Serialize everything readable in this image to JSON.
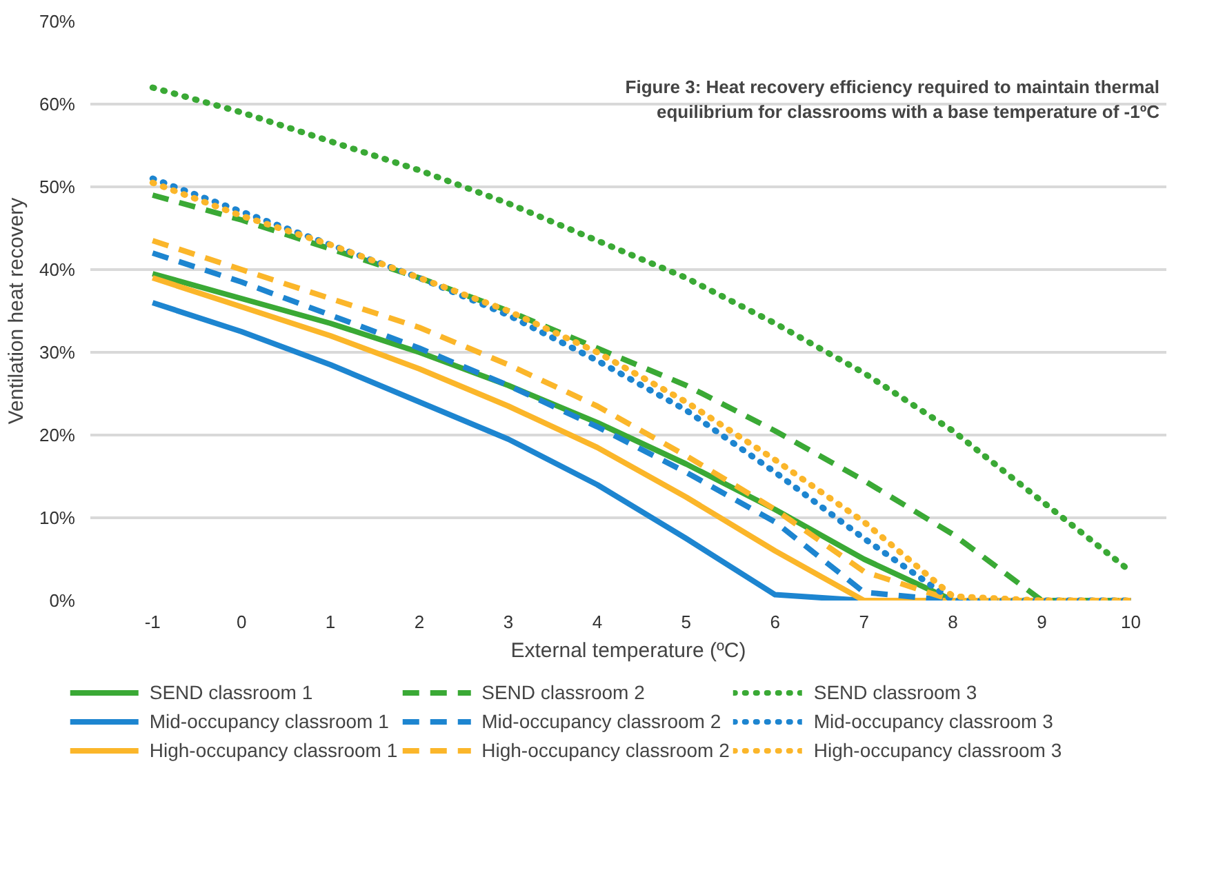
{
  "chart_data": {
    "type": "line",
    "title": "Figure 3: Heat recovery efficiency required to maintain thermal equilibrium for classrooms with a base temperature of -1ºC",
    "xlabel": "External temperature (ºC)",
    "ylabel": "Ventilation heat recovery",
    "x": [
      -1,
      0,
      1,
      2,
      3,
      4,
      5,
      6,
      7,
      8,
      9,
      10
    ],
    "xlim": [
      -1.7,
      10.4
    ],
    "xticks": [
      -1,
      0,
      1,
      2,
      3,
      4,
      5,
      6,
      7,
      8,
      9,
      10
    ],
    "ylim": [
      0,
      70
    ],
    "yticks": [
      {
        "value": 0,
        "label": "0%"
      },
      {
        "value": 10,
        "label": "10%"
      },
      {
        "value": 20,
        "label": "20%"
      },
      {
        "value": 30,
        "label": "30%"
      },
      {
        "value": 40,
        "label": "40%"
      },
      {
        "value": 50,
        "label": "50%"
      },
      {
        "value": 60,
        "label": "60%"
      },
      {
        "value": 70,
        "label": "70%"
      }
    ],
    "grid": "y",
    "legend": "bottom",
    "marker": "none",
    "series": [
      {
        "name": "SEND classroom 1",
        "color": "#3aa935",
        "line_style": "solid",
        "values": [
          39.5,
          36.5,
          33.5,
          30,
          26,
          21.5,
          16.5,
          11,
          5,
          0,
          0,
          0
        ]
      },
      {
        "name": "Mid-occupancy classroom 1",
        "color": "#1d85d0",
        "line_style": "solid",
        "values": [
          36,
          32.5,
          28.5,
          24,
          19.5,
          14,
          7.5,
          0.7,
          0,
          0,
          0,
          0
        ]
      },
      {
        "name": "High-occupancy classroom 1",
        "color": "#fbb62a",
        "line_style": "solid",
        "values": [
          39,
          35.5,
          32,
          28,
          23.5,
          18.5,
          12.5,
          6,
          0,
          0,
          0,
          0
        ]
      },
      {
        "name": "SEND classroom 2",
        "color": "#3aa935",
        "line_style": "dashed",
        "values": [
          49,
          46,
          42.5,
          39,
          35,
          30.5,
          26,
          20.5,
          14.5,
          8,
          0,
          0
        ]
      },
      {
        "name": "Mid-occupancy classroom 2",
        "color": "#1d85d0",
        "line_style": "dashed",
        "values": [
          42,
          38.5,
          34.5,
          30.5,
          26,
          21,
          15.5,
          9.5,
          1,
          0,
          0,
          0
        ]
      },
      {
        "name": "High-occupancy classroom 2",
        "color": "#fbb62a",
        "line_style": "dashed",
        "values": [
          43.5,
          40,
          36.5,
          33,
          28.5,
          23.5,
          17.5,
          11,
          3.5,
          0,
          0,
          0
        ]
      },
      {
        "name": "SEND classroom 3",
        "color": "#3aa935",
        "line_style": "dotted",
        "values": [
          62,
          59,
          55.5,
          52,
          48,
          43.5,
          39,
          33.5,
          27.5,
          20.5,
          12,
          3.5
        ]
      },
      {
        "name": "Mid-occupancy classroom 3",
        "color": "#1d85d0",
        "line_style": "dotted",
        "values": [
          51,
          47,
          43,
          39,
          34.5,
          29,
          23,
          15.5,
          7.5,
          0,
          0,
          0
        ]
      },
      {
        "name": "High-occupancy classroom 3",
        "color": "#fbb62a",
        "line_style": "dotted",
        "values": [
          50.5,
          46.5,
          43,
          39,
          35,
          30,
          24,
          17,
          9.5,
          0.5,
          0,
          0
        ]
      }
    ]
  }
}
